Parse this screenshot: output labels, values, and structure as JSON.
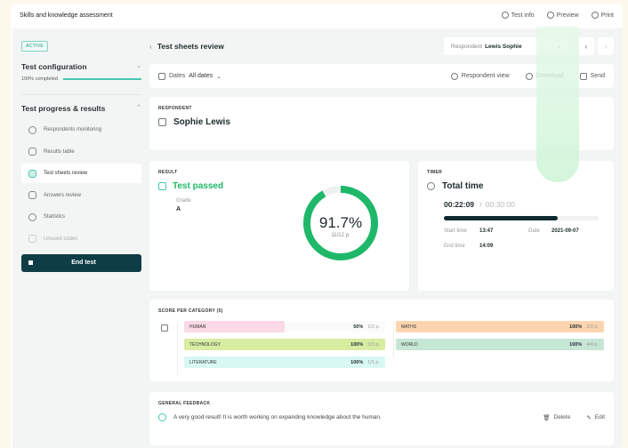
{
  "app": {
    "title": "Skills and knowledge assessment",
    "actions": [
      {
        "label": "Test info",
        "icon": "info-icon"
      },
      {
        "label": "Preview",
        "icon": "eye-icon"
      },
      {
        "label": "Print",
        "icon": "printer-icon"
      }
    ]
  },
  "sidebar": {
    "status_badge": "ACTIVE",
    "config": {
      "title": "Test configuration",
      "progress_label": "100% completed",
      "progress": 100
    },
    "progress_section": "Test progress & results",
    "items": [
      {
        "label": "Respondents monitoring",
        "icon": "monitor-icon"
      },
      {
        "label": "Results table",
        "icon": "table-icon"
      },
      {
        "label": "Test sheets review",
        "icon": "sheet-icon",
        "selected": true
      },
      {
        "label": "Answers review",
        "icon": "check-icon"
      },
      {
        "label": "Statistics",
        "icon": "pie-icon"
      },
      {
        "label": "Unused codes",
        "icon": "code-icon"
      }
    ],
    "end_test": "End test"
  },
  "header": {
    "title": "Test sheets review",
    "respondent_label": "Respondent",
    "respondent_value": "Lewis Sophie"
  },
  "toolbar": {
    "dates_label": "Dates",
    "dates_value": "All dates",
    "respondent_view": "Respondent view",
    "download": "Download",
    "send": "Send"
  },
  "respondent": {
    "label": "RESPONDENT",
    "name": "Sophie Lewis"
  },
  "result": {
    "label": "RESULT",
    "status": "Test passed",
    "grade_label": "Grade",
    "grade": "A",
    "percent": "91.7%",
    "percent_value": 91.7,
    "points": "11/12 p."
  },
  "timer": {
    "label": "TIMER",
    "title": "Total time",
    "elapsed": "00:22:09",
    "separator": "/",
    "total": "00:30:00",
    "progress": 73.8,
    "start_label": "Start time",
    "start": "13:47",
    "date_label": "Date",
    "date": "2021-09-07",
    "end_label": "End time",
    "end": "14:09"
  },
  "scores": {
    "label": "SCORE PER CATEGORY (5)",
    "categories": [
      {
        "name": "HUMAN",
        "percent": "50%",
        "points": "1/2 p.",
        "value": 50,
        "color": "#fbd9e6"
      },
      {
        "name": "TECHNOLOGY",
        "percent": "100%",
        "points": "3/3 p.",
        "value": 100,
        "color": "#d8eca2"
      },
      {
        "name": "LITERATURE",
        "percent": "100%",
        "points": "1/1 p.",
        "value": 100,
        "color": "#d8f8f3"
      },
      {
        "name": "MATHS",
        "percent": "100%",
        "points": "2/2 p.",
        "value": 100,
        "color": "#fcd5b0"
      },
      {
        "name": "WORLD",
        "percent": "100%",
        "points": "4/4 p.",
        "value": 100,
        "color": "#c6e7d5"
      }
    ]
  },
  "feedback": {
    "label": "GENERAL FEEDBACK",
    "text": "A very good result! It is worth working on expanding knowledge about the human.",
    "delete": "Delete",
    "edit": "Edit"
  },
  "colors": {
    "accent": "#1fb86a",
    "dark": "#0f3d45",
    "teal": "#45c6b2"
  }
}
